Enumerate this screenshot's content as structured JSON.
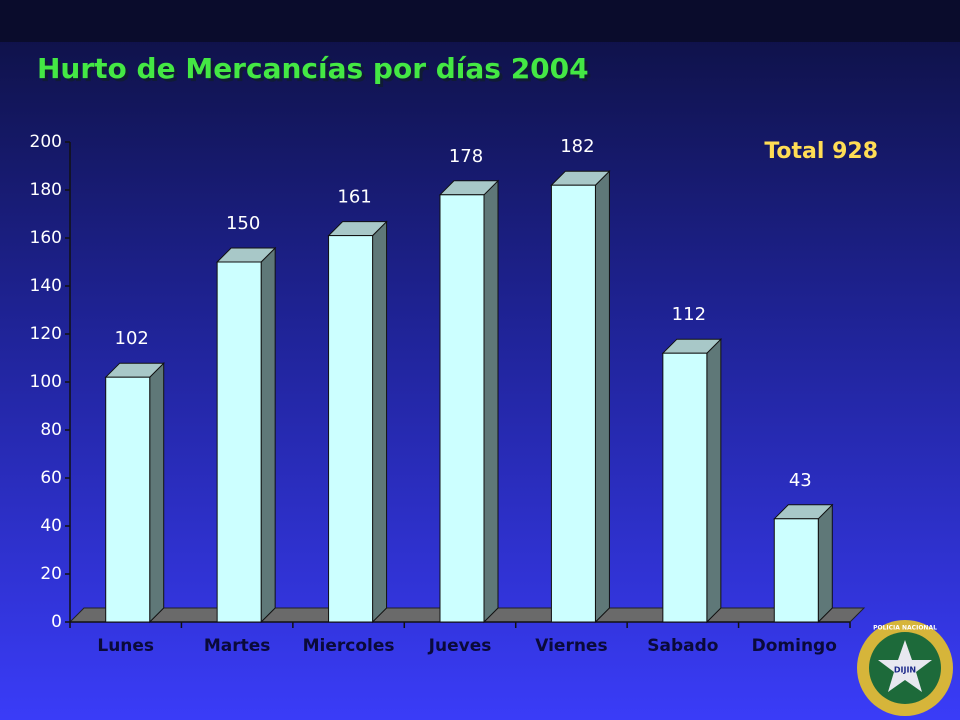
{
  "chart_data": {
    "type": "bar3d",
    "title": "Hurto de Mercancías por días 2004",
    "annotation": "Total 928",
    "categories": [
      "Lunes",
      "Martes",
      "Miercoles",
      "Jueves",
      "Viernes",
      "Sabado",
      "Domingo"
    ],
    "values": [
      102,
      150,
      161,
      178,
      182,
      112,
      43
    ],
    "color": "#ccffff",
    "ylim": [
      0,
      200
    ],
    "yticks": [
      0,
      20,
      40,
      60,
      80,
      100,
      120,
      140,
      160,
      180,
      200
    ],
    "grid": false
  },
  "logo": {
    "center": "DIJIN",
    "ring": "POLICIA NACIONAL"
  }
}
